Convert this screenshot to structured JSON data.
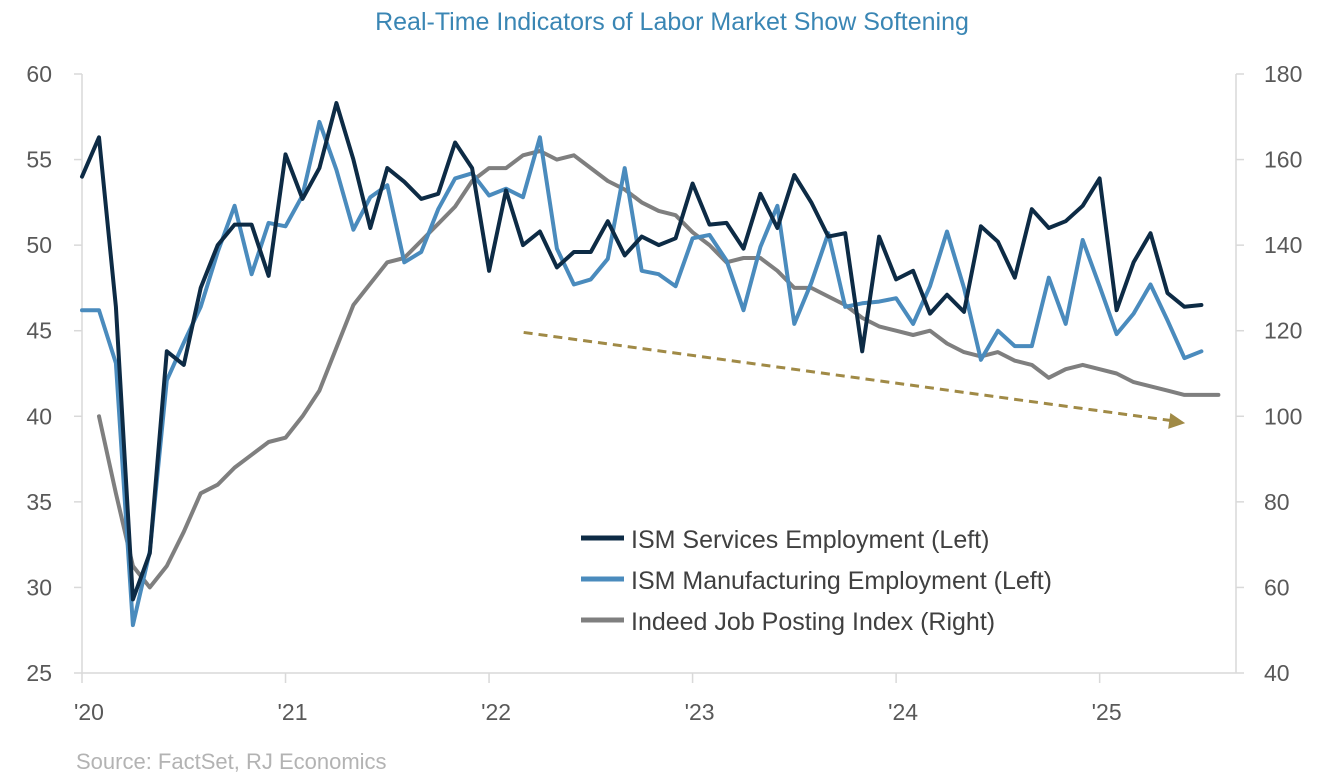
{
  "chart_data": {
    "type": "line",
    "title": "Real-Time Indicators of Labor Market Show Softening",
    "source": "Source: FactSet, RJ Economics",
    "x_tick_labels": [
      "'20",
      "'21",
      "'22",
      "'23",
      "'24",
      "'25"
    ],
    "x_ticks": [
      2020,
      2021,
      2022,
      2023,
      2024,
      2025
    ],
    "xlim": [
      2020.0,
      2025.67
    ],
    "y_left": {
      "lim": [
        25,
        60
      ],
      "ticks": [
        25,
        30,
        35,
        40,
        45,
        50,
        55,
        60
      ]
    },
    "y_right": {
      "lim": [
        40,
        180
      ],
      "ticks": [
        40,
        60,
        80,
        100,
        120,
        140,
        160,
        180
      ]
    },
    "legend_position": "bottom-center",
    "series": [
      {
        "name": "ISM Services Employment (Left)",
        "axis": "left",
        "color": "#0d2b45",
        "start": 2020.0,
        "step_months": 1,
        "values": [
          54.0,
          56.3,
          46.4,
          29.3,
          32.0,
          43.8,
          43.0,
          47.5,
          50.0,
          51.2,
          51.2,
          48.2,
          55.3,
          52.7,
          54.5,
          58.3,
          55.0,
          51.0,
          54.5,
          53.7,
          52.7,
          53.0,
          56.0,
          54.5,
          48.5,
          53.2,
          50.0,
          50.8,
          48.7,
          49.6,
          49.6,
          51.4,
          49.4,
          50.5,
          50.0,
          50.4,
          53.6,
          51.2,
          51.3,
          49.8,
          53.0,
          51.0,
          54.1,
          52.5,
          50.5,
          50.7,
          43.8,
          50.5,
          48.0,
          48.5,
          46.0,
          47.1,
          46.1,
          51.1,
          50.2,
          48.1,
          52.1,
          51.0,
          51.4,
          52.3,
          53.9,
          46.2,
          49.0,
          50.7,
          47.2,
          46.4,
          46.5
        ]
      },
      {
        "name": "ISM Manufacturing Employment (Left)",
        "axis": "left",
        "color": "#4a8bbd",
        "start": 2020.0,
        "step_months": 1,
        "values": [
          46.2,
          46.2,
          43.1,
          27.8,
          32.1,
          42.1,
          44.3,
          46.4,
          49.6,
          52.3,
          48.3,
          51.3,
          51.1,
          52.9,
          57.2,
          54.4,
          50.9,
          52.8,
          53.5,
          49.0,
          49.6,
          52.1,
          53.9,
          54.2,
          52.9,
          53.3,
          52.8,
          56.3,
          49.8,
          47.7,
          48.0,
          49.2,
          54.5,
          48.5,
          48.3,
          47.6,
          50.4,
          50.6,
          49.1,
          46.2,
          49.9,
          52.3,
          45.4,
          47.8,
          50.7,
          46.4,
          46.6,
          46.7,
          46.9,
          45.4,
          47.6,
          50.8,
          47.5,
          43.3,
          45.0,
          44.1,
          44.1,
          48.1,
          45.4,
          50.3,
          47.6,
          44.8,
          46.0,
          47.7,
          45.6,
          43.4,
          43.8
        ]
      },
      {
        "name": "Indeed Job Posting Index (Right)",
        "axis": "right",
        "color": "#7f7f7f",
        "start": 2020.0833,
        "step_months": 1,
        "values": [
          100,
          82,
          65,
          60,
          65,
          73,
          82,
          84,
          88,
          91,
          94,
          95,
          100,
          106,
          116,
          126,
          131,
          136,
          137,
          141,
          145,
          149,
          155,
          158,
          158,
          161,
          162,
          160,
          161,
          158,
          155,
          153,
          150,
          148,
          147,
          143,
          140,
          136,
          137,
          137,
          134,
          130,
          130,
          128,
          126,
          123,
          121,
          120,
          119,
          120,
          117,
          115,
          114,
          115,
          113,
          112,
          109,
          111,
          112,
          111,
          110,
          108,
          107,
          106,
          105,
          105,
          105
        ]
      }
    ],
    "annotation": {
      "type": "dashed-arrow",
      "color": "#a08a46",
      "from": {
        "x": 2022.17,
        "y_left": 44.9
      },
      "to": {
        "x": 2025.42,
        "y_left": 39.6
      }
    }
  }
}
